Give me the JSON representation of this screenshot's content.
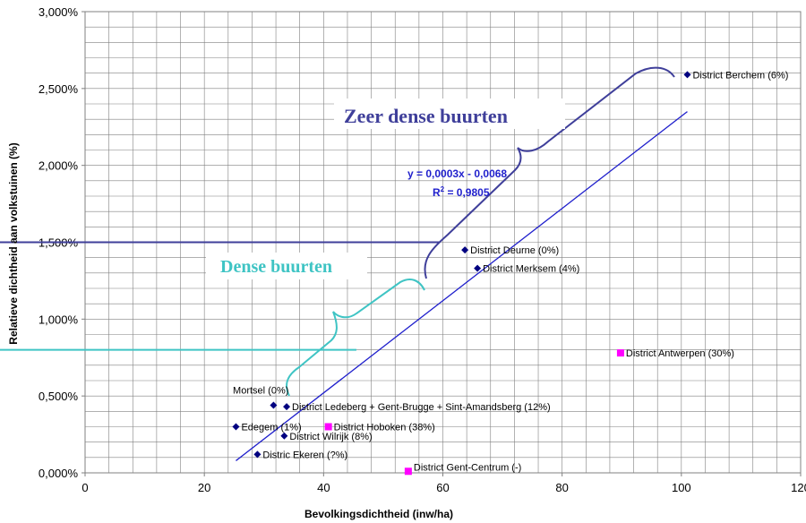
{
  "chart_data": {
    "type": "scatter",
    "xlabel": "Bevolkingsdichtheid (inw/ha)",
    "ylabel": "Relatieve dichtheid aan volkstuinen (%)",
    "xlim": [
      0,
      120
    ],
    "ylim": [
      0,
      0.03
    ],
    "x_ticks": [
      "0",
      "20",
      "40",
      "60",
      "80",
      "100",
      "120"
    ],
    "y_ticks": [
      "0,000%",
      "0,500%",
      "1,000%",
      "1,500%",
      "2,000%",
      "2,500%",
      "3,000%"
    ],
    "grid": true,
    "series": [
      {
        "color": "#000080",
        "marker": "diamond",
        "points": [
          {
            "x": 101.0,
            "y": 0.0259,
            "label": "District Berchem (6%)"
          },
          {
            "x": 63.7,
            "y": 0.0145,
            "label": "District Deurne (0%)"
          },
          {
            "x": 65.8,
            "y": 0.0133,
            "label": "District Merksem (4%)"
          },
          {
            "x": 31.6,
            "y": 0.0044,
            "label": "Mortsel (0%)"
          },
          {
            "x": 33.8,
            "y": 0.0043,
            "label": "District Ledeberg + Gent-Brugge + Sint-Amandsberg (12%)"
          },
          {
            "x": 25.3,
            "y": 0.003,
            "label": "Edegem (1%)"
          },
          {
            "x": 33.4,
            "y": 0.0024,
            "label": "District Wilrijk (8%)"
          },
          {
            "x": 28.9,
            "y": 0.0012,
            "label": "Distric Ekeren (?%)"
          }
        ]
      },
      {
        "color": "#ff00ff",
        "marker": "square",
        "points": [
          {
            "x": 89.8,
            "y": 0.0078,
            "label": "District Antwerpen (30%)"
          },
          {
            "x": 40.8,
            "y": 0.003,
            "label": "District Hoboken (38%)"
          },
          {
            "x": 54.2,
            "y": 0.0001,
            "label": "District Gent-Centrum (-)"
          }
        ]
      }
    ],
    "trendline": {
      "equation": "y = 0,0003x - 0,0068",
      "r2_prefix": "R",
      "r2_sup": "2",
      "r2_value": " = 0,9805",
      "slope": 0.0003,
      "intercept": -0.0068,
      "x_range": [
        25.3,
        101.0
      ],
      "color": "#1f1fcc"
    },
    "reference_lines": [
      {
        "y": 0.015,
        "x_end": 59.5,
        "color": "#3f3f9a"
      },
      {
        "y": 0.008,
        "x_end": 45.5,
        "color": "#3fc4c4"
      }
    ],
    "annotations": [
      {
        "text": "Zeer dense buurten",
        "color": "#3f3f9a"
      },
      {
        "text": "Dense buurten",
        "color": "#3fc4c4"
      }
    ]
  }
}
